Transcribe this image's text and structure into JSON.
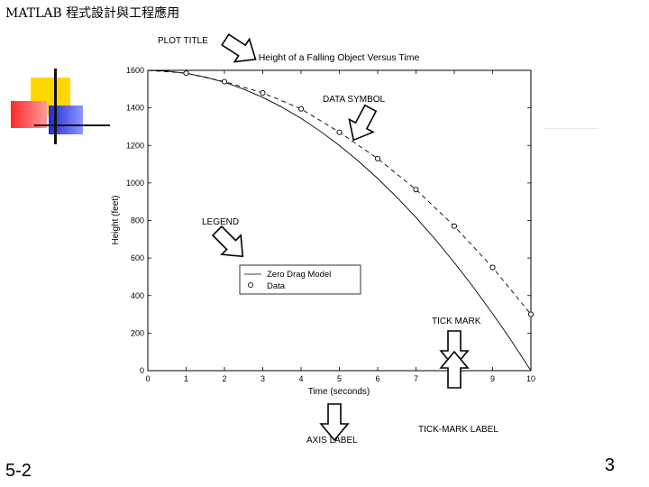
{
  "slide": {
    "header_title": "MATLAB 程式設計與工程應用",
    "section_number": "5-2",
    "page_number": "3"
  },
  "annotations": {
    "plot_title": "PLOT TITLE",
    "data_symbol": "DATA SYMBOL",
    "legend": "LEGEND",
    "tick_mark": "TICK MARK",
    "tick_mark_label": "TICK-MARK LABEL",
    "axis_label": "AXIS LABEL"
  },
  "chart_data": {
    "type": "line",
    "title": "Height of a Falling Object Versus Time",
    "xlabel": "Time (seconds)",
    "ylabel": "Height (feet)",
    "xlim": [
      0,
      10
    ],
    "ylim": [
      0,
      1600
    ],
    "xticks": [
      "0",
      "1",
      "2",
      "3",
      "4",
      "5",
      "6",
      "7",
      "8",
      "9",
      "10"
    ],
    "yticks": [
      "0",
      "200",
      "400",
      "600",
      "800",
      "1000",
      "1200",
      "1400",
      "1600"
    ],
    "grid": false,
    "legend_position": "lower-middle",
    "series": [
      {
        "name": "Zero Drag Model",
        "style": "solid",
        "x": [
          0,
          0.5,
          1,
          1.5,
          2,
          2.5,
          3,
          3.5,
          4,
          4.5,
          5,
          5.5,
          6,
          6.5,
          7,
          7.5,
          8,
          8.5,
          9,
          9.5,
          10
        ],
        "y": [
          1600,
          1596,
          1584,
          1564,
          1536,
          1500,
          1456,
          1404,
          1344,
          1276,
          1200,
          1116,
          1024,
          924,
          816,
          700,
          576,
          444,
          304,
          156,
          0
        ]
      },
      {
        "name": "Data",
        "style": "circle-marker",
        "x": [
          1,
          2,
          3,
          4,
          5,
          6,
          7,
          8,
          9,
          10
        ],
        "y": [
          1585,
          1540,
          1480,
          1395,
          1270,
          1130,
          965,
          770,
          550,
          300
        ]
      }
    ]
  }
}
